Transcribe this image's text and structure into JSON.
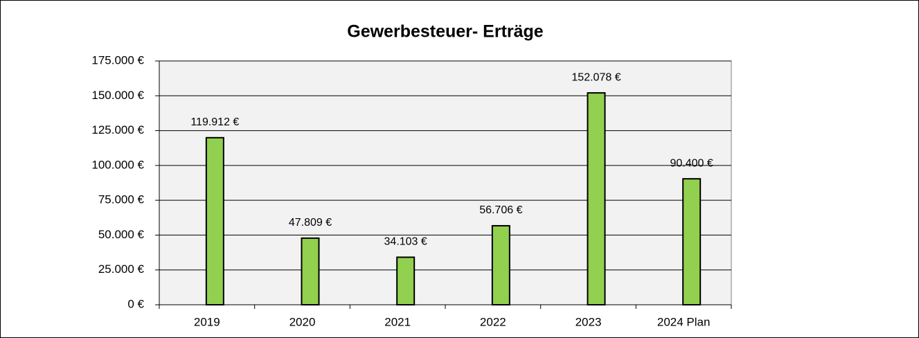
{
  "chart_data": {
    "type": "bar",
    "title": "Gewerbesteuer- Erträge",
    "categories": [
      "2019",
      "2020",
      "2021",
      "2022",
      "2023",
      "2024 Plan"
    ],
    "values": [
      119912,
      47809,
      34103,
      56706,
      152078,
      90400
    ],
    "value_labels": [
      "119.912 €",
      "47.809 €",
      "34.103 €",
      "56.706 €",
      "152.078 €",
      "90.400 €"
    ],
    "color": "#92d050",
    "ylim": [
      0,
      175000
    ],
    "yticks": [
      {
        "value": 0,
        "label": "0 €"
      },
      {
        "value": 25000,
        "label": "25.000 €"
      },
      {
        "value": 50000,
        "label": "50.000 €"
      },
      {
        "value": 75000,
        "label": "75.000 €"
      },
      {
        "value": 100000,
        "label": "100.000 €"
      },
      {
        "value": 125000,
        "label": "125.000 €"
      },
      {
        "value": 150000,
        "label": "150.000 €"
      },
      {
        "value": 175000,
        "label": "175.000 €"
      }
    ],
    "grid": true
  }
}
